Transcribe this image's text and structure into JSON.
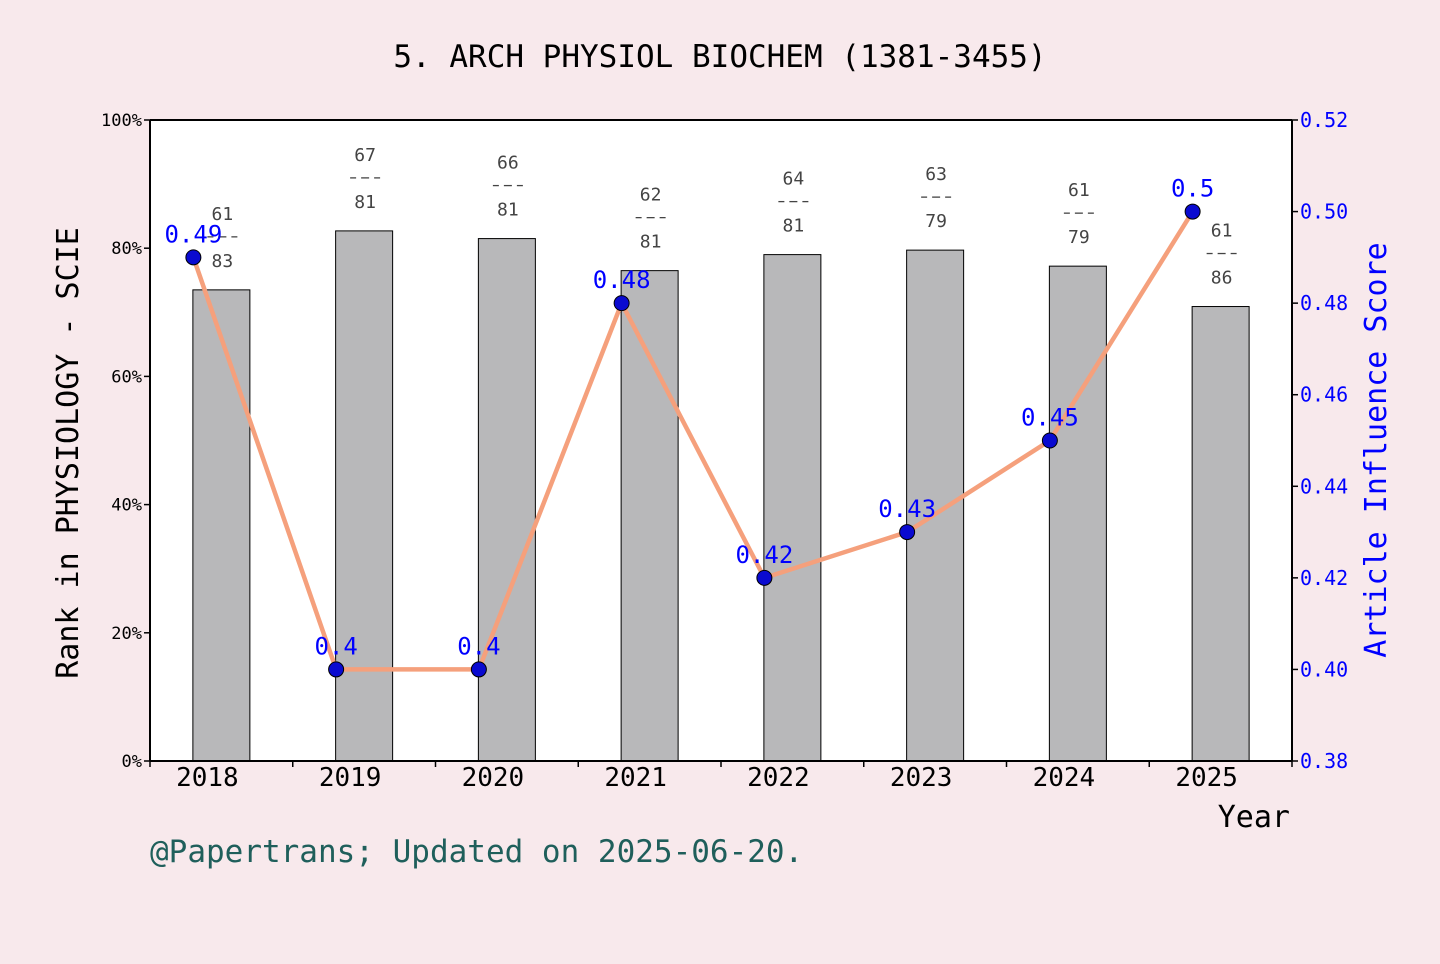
{
  "chart_data": {
    "type": "bar",
    "title": "5. ARCH PHYSIOL BIOCHEM (1381-3455)",
    "xlabel": "Year",
    "ylabel": "Rank in PHYSIOLOGY - SCIE",
    "y2label": "Article Influence Score",
    "categories": [
      "2018",
      "2019",
      "2020",
      "2021",
      "2022",
      "2023",
      "2024",
      "2025"
    ],
    "ylim": [
      0,
      100
    ],
    "yticks": [
      "0%",
      "20%",
      "40%",
      "60%",
      "80%",
      "100%"
    ],
    "y2lim": [
      0.38,
      0.52
    ],
    "y2ticks": [
      "0.38",
      "0.40",
      "0.42",
      "0.44",
      "0.46",
      "0.48",
      "0.50",
      "0.52"
    ],
    "series": [
      {
        "kind": "bar",
        "values": [
          73.5,
          82.7,
          81.5,
          76.5,
          79.0,
          79.7,
          77.2,
          70.9
        ],
        "rank_labels": [
          {
            "top": "61",
            "bottom": "83"
          },
          {
            "top": "67",
            "bottom": "81"
          },
          {
            "top": "66",
            "bottom": "81"
          },
          {
            "top": "62",
            "bottom": "81"
          },
          {
            "top": "64",
            "bottom": "81"
          },
          {
            "top": "63",
            "bottom": "79"
          },
          {
            "top": "61",
            "bottom": "79"
          },
          {
            "top": "61",
            "bottom": "86"
          }
        ],
        "color": "#b8b8ba"
      },
      {
        "kind": "line",
        "axis": "right",
        "values": [
          0.49,
          0.4,
          0.4,
          0.48,
          0.42,
          0.43,
          0.45,
          0.5
        ],
        "point_labels": [
          "0.49",
          "0.4",
          "0.4",
          "0.48",
          "0.42",
          "0.43",
          "0.45",
          "0.5"
        ],
        "line_color": "#f5a07c",
        "marker_color": "#0a0ad0"
      }
    ],
    "colors": {
      "right_axis": "#0000ff",
      "background": "#f8e9ec",
      "footer": "#1f5f5b"
    }
  },
  "footer_text": "@Papertrans; Updated on 2025-06-20."
}
